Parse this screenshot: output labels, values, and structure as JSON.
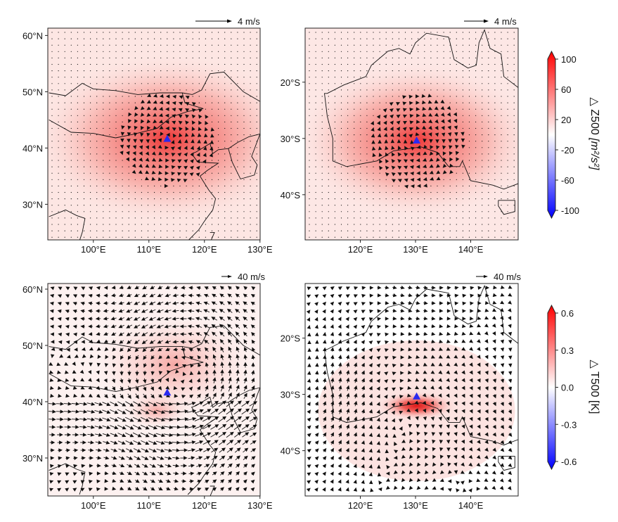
{
  "figure": {
    "panels": [
      {
        "id": "z500-china",
        "ref_label": "4 m/s",
        "yticks": [
          "60°N",
          "50°N",
          "40°N",
          "30°N"
        ],
        "xticks": [
          "100°E",
          "110°E",
          "120°E",
          "130°E"
        ],
        "marker_color": "#2a2af0"
      },
      {
        "id": "z500-australia",
        "ref_label": "4 m/s",
        "yticks": [
          "20°S",
          "30°S",
          "40°S"
        ],
        "xticks": [
          "120°E",
          "130°E",
          "140°E"
        ],
        "marker_color": "#2a2af0"
      },
      {
        "id": "t500-china",
        "ref_label": "40 m/s",
        "yticks": [
          "60°N",
          "50°N",
          "40°N",
          "30°N"
        ],
        "xticks": [
          "100°E",
          "110°E",
          "120°E",
          "130°E"
        ],
        "marker_color": "#2a2af0"
      },
      {
        "id": "t500-australia",
        "ref_label": "40 m/s",
        "yticks": [
          "20°S",
          "30°S",
          "40°S"
        ],
        "xticks": [
          "120°E",
          "130°E",
          "140°E"
        ],
        "marker_color": "#2a2af0"
      }
    ],
    "colorbars": [
      {
        "label_symbol": "△",
        "label_var": "Z500",
        "label_unit": "[m²/s²]",
        "ticks": [
          "100",
          "60",
          "20",
          "-20",
          "-60",
          "-100"
        ],
        "max_color": "#ff0000",
        "min_color": "#0000ff"
      },
      {
        "label_symbol": "△",
        "label_var": "T500",
        "label_unit": "[K]",
        "ticks": [
          "0.6",
          "0.3",
          "0.0",
          "-0.3",
          "-0.6"
        ],
        "max_color": "#ff0000",
        "min_color": "#0000ff"
      }
    ]
  }
}
